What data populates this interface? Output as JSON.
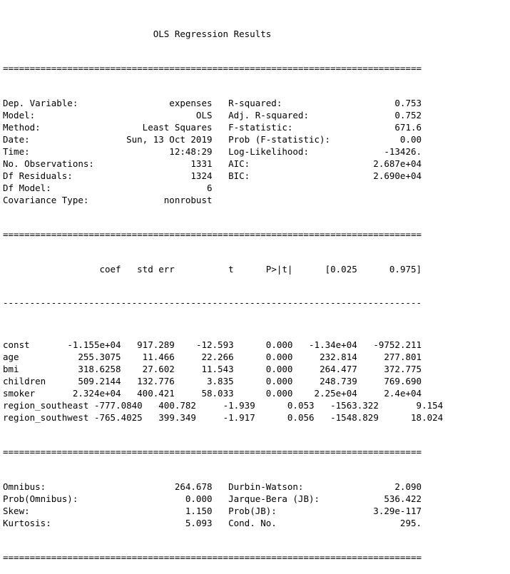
{
  "title": "OLS Regression Results",
  "summary_left": [
    {
      "label": "Dep. Variable:",
      "value": "expenses"
    },
    {
      "label": "Model:",
      "value": "OLS"
    },
    {
      "label": "Method:",
      "value": "Least Squares"
    },
    {
      "label": "Date:",
      "value": "Sun, 13 Oct 2019"
    },
    {
      "label": "Time:",
      "value": "12:48:29"
    },
    {
      "label": "No. Observations:",
      "value": "1331"
    },
    {
      "label": "Df Residuals:",
      "value": "1324"
    },
    {
      "label": "Df Model:",
      "value": "6"
    },
    {
      "label": "Covariance Type:",
      "value": "nonrobust"
    }
  ],
  "summary_right": [
    {
      "label": "R-squared:",
      "value": "0.753"
    },
    {
      "label": "Adj. R-squared:",
      "value": "0.752"
    },
    {
      "label": "F-statistic:",
      "value": "671.6"
    },
    {
      "label": "Prob (F-statistic):",
      "value": "0.00"
    },
    {
      "label": "Log-Likelihood:",
      "value": "-13426."
    },
    {
      "label": "AIC:",
      "value": "2.687e+04"
    },
    {
      "label": "BIC:",
      "value": "2.690e+04"
    }
  ],
  "coef_headers": [
    "coef",
    "std err",
    "t",
    "P>|t|",
    "[0.025",
    "0.975]"
  ],
  "coef_rows": [
    {
      "name": "const",
      "values": [
        "-1.155e+04",
        "917.289",
        "-12.593",
        "0.000",
        "-1.34e+04",
        "-9752.211"
      ]
    },
    {
      "name": "age",
      "values": [
        "255.3075",
        "11.466",
        "22.266",
        "0.000",
        "232.814",
        "277.801"
      ]
    },
    {
      "name": "bmi",
      "values": [
        "318.6258",
        "27.602",
        "11.543",
        "0.000",
        "264.477",
        "372.775"
      ]
    },
    {
      "name": "children",
      "values": [
        "509.2144",
        "132.776",
        "3.835",
        "0.000",
        "248.739",
        "769.690"
      ]
    },
    {
      "name": "smoker",
      "values": [
        "2.324e+04",
        "400.421",
        "58.033",
        "0.000",
        "2.25e+04",
        "2.4e+04"
      ]
    },
    {
      "name": "region_southeast",
      "values": [
        "-777.0840",
        "400.782",
        "-1.939",
        "0.053",
        "-1563.322",
        "9.154"
      ]
    },
    {
      "name": "region_southwest",
      "values": [
        "-765.4025",
        "399.349",
        "-1.917",
        "0.056",
        "-1548.829",
        "18.024"
      ]
    }
  ],
  "diagnostics_left": [
    {
      "label": "Omnibus:",
      "value": "264.678"
    },
    {
      "label": "Prob(Omnibus):",
      "value": "0.000"
    },
    {
      "label": "Skew:",
      "value": "1.150"
    },
    {
      "label": "Kurtosis:",
      "value": "5.093"
    }
  ],
  "diagnostics_right": [
    {
      "label": "Durbin-Watson:",
      "value": "2.090"
    },
    {
      "label": "Jarque-Bera (JB):",
      "value": "536.422"
    },
    {
      "label": "Prob(JB):",
      "value": "3.29e-117"
    },
    {
      "label": "Cond. No.",
      "value": "295."
    }
  ]
}
